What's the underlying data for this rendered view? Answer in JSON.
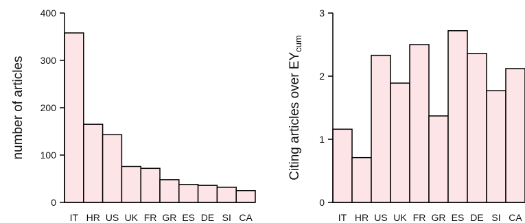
{
  "chart_data": [
    {
      "type": "bar",
      "categories": [
        "IT",
        "HR",
        "US",
        "UK",
        "FR",
        "GR",
        "ES",
        "DE",
        "SI",
        "CA"
      ],
      "values": [
        358,
        165,
        143,
        76,
        72,
        48,
        38,
        36,
        32,
        25
      ],
      "ylabel": "number of articles",
      "ylim": [
        0,
        400
      ],
      "yticks": [
        "0",
        "100",
        "200",
        "300",
        "400"
      ],
      "grid": false,
      "bar_color": "#fde4e6"
    },
    {
      "type": "bar",
      "categories": [
        "IT",
        "HR",
        "US",
        "UK",
        "FR",
        "GR",
        "ES",
        "DE",
        "SI",
        "CA"
      ],
      "values": [
        1.16,
        0.71,
        2.33,
        1.89,
        2.5,
        1.37,
        2.72,
        2.36,
        1.77,
        2.12
      ],
      "ylabel": "Citing articles over EY",
      "ylabel_sub": "cum",
      "ylim": [
        0,
        3
      ],
      "yticks": [
        "0",
        "1",
        "2",
        "3"
      ],
      "grid": false,
      "bar_color": "#fde4e6"
    }
  ]
}
